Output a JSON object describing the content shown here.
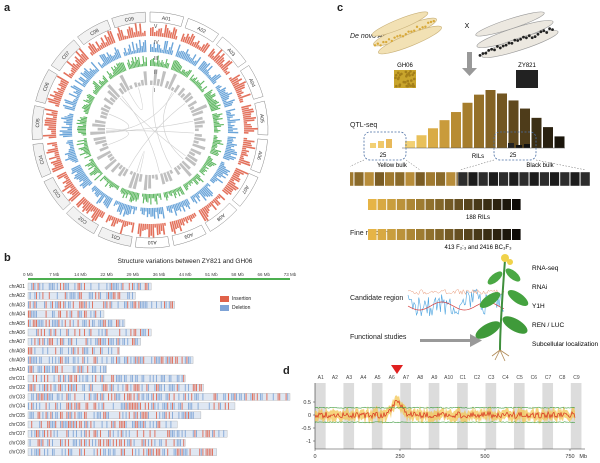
{
  "panels": {
    "a": {
      "label": "a",
      "ring_labels": [
        "V",
        "IV",
        "III",
        "II",
        "I"
      ],
      "chromosomes": [
        "A01",
        "A02",
        "A03",
        "A04",
        "A05",
        "A06",
        "A07",
        "A08",
        "A09",
        "A10",
        "C01",
        "C02",
        "C03",
        "C04",
        "C05",
        "C06",
        "C07",
        "C08",
        "C09"
      ]
    },
    "b": {
      "label": "b",
      "title": "Structure variations between ZY821 and GH06",
      "axis_ticks": [
        "0 Mb",
        "7 Mb",
        "14 Mb",
        "22 Mb",
        "29 Mb",
        "36 Mb",
        "44 Mb",
        "51 Mb",
        "58 Mb",
        "66 Mb",
        "73 Mb"
      ],
      "legend": [
        {
          "label": "Insertion",
          "color": "#e0624a"
        },
        {
          "label": "Deletion",
          "color": "#7ea3d6"
        }
      ],
      "rows": [
        {
          "name": "chrA01",
          "len": 0.47
        },
        {
          "name": "chrA02",
          "len": 0.41
        },
        {
          "name": "chrA03",
          "len": 0.56
        },
        {
          "name": "chrA04",
          "len": 0.29
        },
        {
          "name": "chrA05",
          "len": 0.37
        },
        {
          "name": "chrA06",
          "len": 0.47
        },
        {
          "name": "chrA07",
          "len": 0.43
        },
        {
          "name": "chrA08",
          "len": 0.35
        },
        {
          "name": "chrA09",
          "len": 0.63
        },
        {
          "name": "chrA10",
          "len": 0.3
        },
        {
          "name": "chrC01",
          "len": 0.6
        },
        {
          "name": "chrC02",
          "len": 0.67
        },
        {
          "name": "chrC03",
          "len": 1.0
        },
        {
          "name": "chrC04",
          "len": 0.79
        },
        {
          "name": "chrC05",
          "len": 0.66
        },
        {
          "name": "chrC06",
          "len": 0.57
        },
        {
          "name": "chrC07",
          "len": 0.76
        },
        {
          "name": "chrC08",
          "len": 0.6
        },
        {
          "name": "chrC09",
          "len": 0.72
        }
      ]
    },
    "c": {
      "label": "c",
      "steps": [
        "De novo Assembly",
        "QTL-seq",
        "Fine mapping",
        "Candidate region",
        "Functional studies"
      ],
      "parents": [
        "GH06",
        "ZY821"
      ],
      "cross_symbol": "X",
      "bulk_counts": [
        "25",
        "25"
      ],
      "rils_label": "RILs",
      "bulks": [
        "Yellow bulk",
        "Black bulk"
      ],
      "population_1": "188 RILs",
      "population_2": "413 F₂:₃ and 2416 BC₃F₃",
      "studies": [
        "RNA-seq",
        "RNAi",
        "Y1H",
        "REN / LUC",
        "Subcellular localization"
      ],
      "histogram": [
        0.12,
        0.22,
        0.34,
        0.48,
        0.62,
        0.78,
        0.92,
        1.0,
        0.94,
        0.82,
        0.68,
        0.52,
        0.36,
        0.2
      ],
      "hist_colors": [
        "#f2d074",
        "#e8c05a",
        "#d9ab45",
        "#c99b3b",
        "#b88c33",
        "#a67d2c",
        "#957028",
        "#846325",
        "#725622",
        "#60491e",
        "#4e3c1a",
        "#3c2f15",
        "#2a2110",
        "#1a150b"
      ]
    },
    "d": {
      "label": "d",
      "chrom_labels": [
        "A1",
        "A2",
        "A3",
        "A4",
        "A5",
        "A6",
        "A7",
        "A8",
        "A9",
        "A10",
        "C1",
        "C2",
        "C3",
        "C4",
        "C5",
        "C6",
        "C7",
        "C8",
        "C9"
      ],
      "y_ticks": [
        "0.5",
        "0",
        "-0.5",
        "-1"
      ],
      "x_ticks": [
        "0",
        "250",
        "500",
        "750"
      ],
      "x_unit": "Mb"
    }
  }
}
